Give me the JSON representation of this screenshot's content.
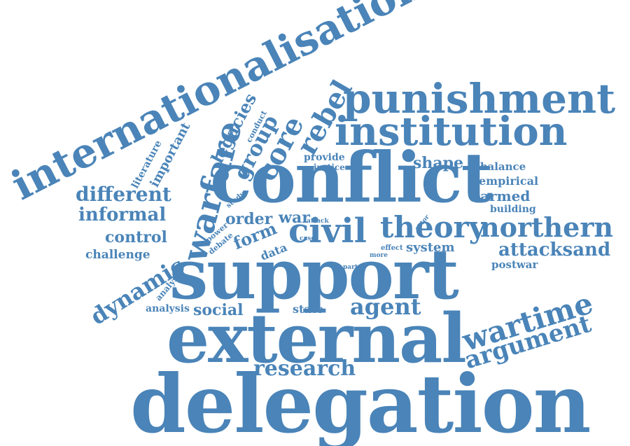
{
  "colors": {
    "word": "#4a84b8",
    "background": "#ffffff"
  },
  "words": [
    "internationalisation",
    "punishment",
    "institution",
    "conflict",
    "rebel",
    "core",
    "warfare",
    "group",
    "legacies",
    "conduct",
    "important",
    "literature",
    "different",
    "informal",
    "control",
    "challenge",
    "dynamic",
    "analyse",
    "analysis",
    "power",
    "debate",
    "study",
    "order",
    "war",
    "form",
    "data",
    "civil",
    "theory",
    "case",
    "attack",
    "actor",
    "provide",
    "justice",
    "shape",
    "balance",
    "empirical",
    "armed",
    "building",
    "northern",
    "attacksand",
    "postwar",
    "system",
    "effect",
    "more",
    "part",
    "support",
    "social",
    "state",
    "agent",
    "wartime",
    "argument",
    "external",
    "research",
    "delegation"
  ]
}
